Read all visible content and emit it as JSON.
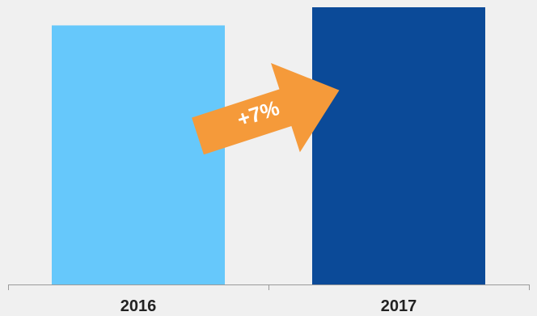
{
  "chart_data": {
    "type": "bar",
    "categories": [
      "2016",
      "2017"
    ],
    "values": [
      100,
      107
    ],
    "ylim": [
      0,
      110
    ],
    "colors": [
      "#66c8fb",
      "#0b4a98"
    ],
    "axis_color": "#9a9a9a",
    "grid": false,
    "annotation": {
      "label": "+7%",
      "shape": "arrow",
      "color": "#f59a3a",
      "from_category": "2016",
      "to_category": "2017"
    }
  }
}
